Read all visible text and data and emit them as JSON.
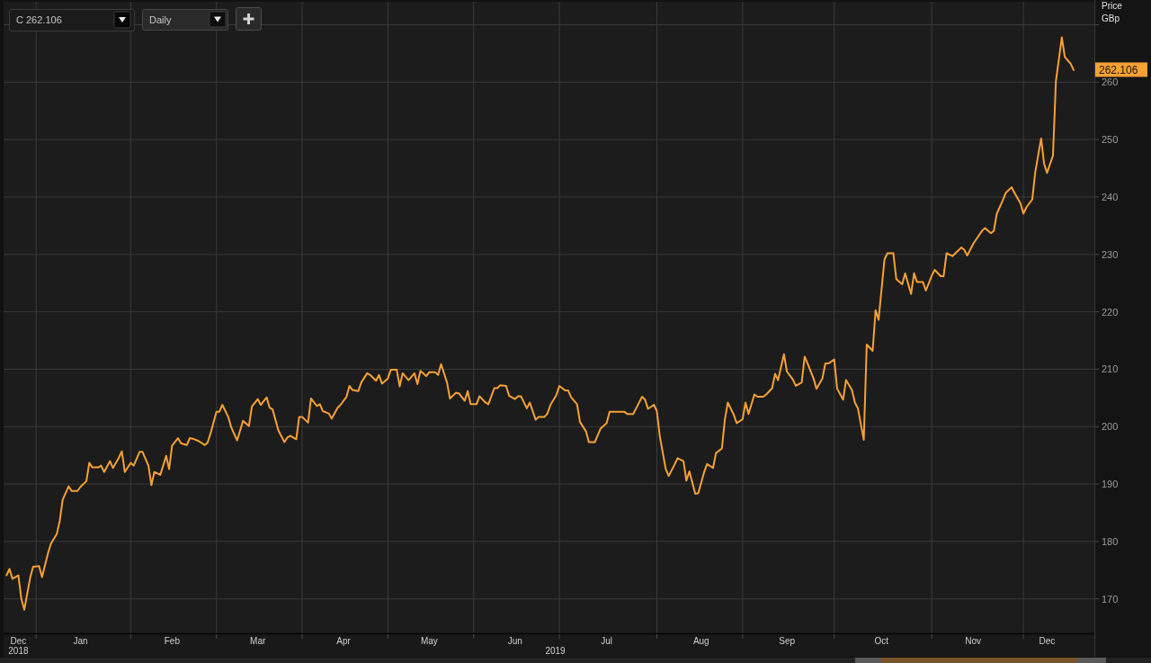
{
  "chart_data": {
    "type": "line",
    "ylabel": "Price GBp",
    "xlabel": "2019",
    "annotations": [
      "C 262.106",
      "Daily",
      "262.106"
    ],
    "grid": true,
    "xlim": [
      "2018-12-21",
      "2019-12-25"
    ],
    "xticks": [
      {
        "value": "2018-12-26",
        "label": "Dec\n2018"
      },
      {
        "value": "2019-01-01",
        "label": null
      },
      {
        "value": "2019-01-16",
        "label": "Jan"
      },
      {
        "value": "2019-02-02",
        "label": null
      },
      {
        "value": "2019-02-16",
        "label": "Feb"
      },
      {
        "value": "2019-03-03",
        "label": null
      },
      {
        "value": "2019-03-17",
        "label": "Mar"
      },
      {
        "value": "2019-04-01",
        "label": null
      },
      {
        "value": "2019-04-15",
        "label": "Apr"
      },
      {
        "value": "2019-04-30",
        "label": null
      },
      {
        "value": "2019-05-14",
        "label": "May"
      },
      {
        "value": "2019-05-29",
        "label": null
      },
      {
        "value": "2019-06-12",
        "label": "Jun"
      },
      {
        "value": "2019-06-27",
        "label": null
      },
      {
        "value": "2019-07-13",
        "label": "Jul"
      },
      {
        "value": "2019-07-30",
        "label": null
      },
      {
        "value": "2019-08-14",
        "label": "Aug"
      },
      {
        "value": "2019-08-28",
        "label": null
      },
      {
        "value": "2019-09-12",
        "label": "Sep"
      },
      {
        "value": "2019-09-28",
        "label": null
      },
      {
        "value": "2019-10-14",
        "label": "Oct"
      },
      {
        "value": "2019-10-31",
        "label": null
      },
      {
        "value": "2019-11-14",
        "label": "Nov"
      },
      {
        "value": "2019-12-01",
        "label": null
      },
      {
        "value": "2019-12-09",
        "label": "Dec"
      }
    ],
    "ylim": [
      164,
      274
    ],
    "yticks": [
      170,
      180,
      190,
      200,
      210,
      220,
      230,
      240,
      250,
      260,
      {
        "value": 270,
        "label": null
      }
    ],
    "x": [
      "2018-12-22",
      "2018-12-23",
      "2018-12-24",
      "2018-12-26",
      "2018-12-27",
      "2018-12-28",
      "2018-12-30",
      "2018-12-31",
      "2019-01-02",
      "2019-01-03",
      "2019-01-05",
      "2019-01-06",
      "2019-01-08",
      "2019-01-09",
      "2019-01-10",
      "2019-01-12",
      "2019-01-13",
      "2019-01-15",
      "2019-01-16",
      "2019-01-18",
      "2019-01-19",
      "2019-01-20",
      "2019-01-22",
      "2019-01-23",
      "2019-01-24",
      "2019-01-26",
      "2019-01-27",
      "2019-01-29",
      "2019-01-30",
      "2019-01-31",
      "2019-02-02",
      "2019-02-03",
      "2019-02-05",
      "2019-02-06",
      "2019-02-08",
      "2019-02-09",
      "2019-02-10",
      "2019-02-12",
      "2019-02-14",
      "2019-02-15",
      "2019-02-16",
      "2019-02-18",
      "2019-02-19",
      "2019-02-21",
      "2019-02-22",
      "2019-02-23",
      "2019-02-25",
      "2019-02-27",
      "2019-02-28",
      "2019-03-01",
      "2019-03-03",
      "2019-03-04",
      "2019-03-05",
      "2019-03-07",
      "2019-03-08",
      "2019-03-10",
      "2019-03-11",
      "2019-03-12",
      "2019-03-14",
      "2019-03-15",
      "2019-03-17",
      "2019-03-18",
      "2019-03-20",
      "2019-03-21",
      "2019-03-22",
      "2019-03-24",
      "2019-03-26",
      "2019-03-27",
      "2019-03-28",
      "2019-03-30",
      "2019-03-31",
      "2019-04-01",
      "2019-04-03",
      "2019-04-04",
      "2019-04-06",
      "2019-04-07",
      "2019-04-08",
      "2019-04-10",
      "2019-04-11",
      "2019-04-13",
      "2019-04-14",
      "2019-04-16",
      "2019-04-17",
      "2019-04-18",
      "2019-04-20",
      "2019-04-21",
      "2019-04-23",
      "2019-04-24",
      "2019-04-26",
      "2019-04-27",
      "2019-04-28",
      "2019-04-30",
      "2019-05-01",
      "2019-05-03",
      "2019-05-04",
      "2019-05-05",
      "2019-05-07",
      "2019-05-09",
      "2019-05-10",
      "2019-05-11",
      "2019-05-13",
      "2019-05-14",
      "2019-05-16",
      "2019-05-17",
      "2019-05-18",
      "2019-05-20",
      "2019-05-21",
      "2019-05-23",
      "2019-05-24",
      "2019-05-26",
      "2019-05-27",
      "2019-05-28",
      "2019-05-30",
      "2019-05-31",
      "2019-06-02",
      "2019-06-03",
      "2019-06-05",
      "2019-06-06",
      "2019-06-07",
      "2019-06-09",
      "2019-06-10",
      "2019-06-12",
      "2019-06-13",
      "2019-06-14",
      "2019-06-16",
      "2019-06-17",
      "2019-06-19",
      "2019-06-20",
      "2019-06-22",
      "2019-06-23",
      "2019-06-24",
      "2019-06-26",
      "2019-06-27",
      "2019-06-29",
      "2019-06-30",
      "2019-07-01",
      "2019-07-03",
      "2019-07-04",
      "2019-07-06",
      "2019-07-07",
      "2019-07-09",
      "2019-07-10",
      "2019-07-11",
      "2019-07-13",
      "2019-07-14",
      "2019-07-16",
      "2019-07-17",
      "2019-07-19",
      "2019-07-20",
      "2019-07-22",
      "2019-07-23",
      "2019-07-25",
      "2019-07-26",
      "2019-07-27",
      "2019-07-29",
      "2019-07-30",
      "2019-07-31",
      "2019-08-02",
      "2019-08-03",
      "2019-08-05",
      "2019-08-06",
      "2019-08-08",
      "2019-08-09",
      "2019-08-10",
      "2019-08-12",
      "2019-08-13",
      "2019-08-15",
      "2019-08-16",
      "2019-08-18",
      "2019-08-19",
      "2019-08-21",
      "2019-08-22",
      "2019-08-23",
      "2019-08-25",
      "2019-08-26",
      "2019-08-28",
      "2019-08-29",
      "2019-08-30",
      "2019-09-01",
      "2019-09-02",
      "2019-09-04",
      "2019-09-05",
      "2019-09-07",
      "2019-09-08",
      "2019-09-09",
      "2019-09-11",
      "2019-09-12",
      "2019-09-14",
      "2019-09-15",
      "2019-09-17",
      "2019-09-18",
      "2019-09-19",
      "2019-09-21",
      "2019-09-22",
      "2019-09-24",
      "2019-09-25",
      "2019-09-26",
      "2019-09-28",
      "2019-09-29",
      "2019-10-01",
      "2019-10-02",
      "2019-10-04",
      "2019-10-05",
      "2019-10-06",
      "2019-10-08",
      "2019-10-09",
      "2019-10-11",
      "2019-10-12",
      "2019-10-13",
      "2019-10-15",
      "2019-10-16",
      "2019-10-18",
      "2019-10-19",
      "2019-10-21",
      "2019-10-22",
      "2019-10-24",
      "2019-10-25",
      "2019-10-26",
      "2019-10-28",
      "2019-10-29",
      "2019-10-31",
      "2019-11-01",
      "2019-11-03",
      "2019-11-04",
      "2019-11-05",
      "2019-11-07",
      "2019-11-08",
      "2019-11-10",
      "2019-11-11",
      "2019-11-12",
      "2019-11-14",
      "2019-11-15",
      "2019-11-17",
      "2019-11-18",
      "2019-11-20",
      "2019-11-21",
      "2019-11-22",
      "2019-11-24",
      "2019-11-25",
      "2019-11-27",
      "2019-11-28",
      "2019-11-30",
      "2019-12-01",
      "2019-12-02",
      "2019-12-04",
      "2019-12-05",
      "2019-12-07",
      "2019-12-08",
      "2019-12-09",
      "2019-12-11",
      "2019-12-12",
      "2019-12-14",
      "2019-12-15",
      "2019-12-17",
      "2019-12-18"
    ],
    "series": [
      {
        "color": "#f7a135",
        "values": [
          174.1,
          175.2,
          173.5,
          174.1,
          170.0,
          168.1,
          173.7,
          175.6,
          175.7,
          173.8,
          177.9,
          179.6,
          181.3,
          183.6,
          187.3,
          189.6,
          188.8,
          188.8,
          189.5,
          190.5,
          193.7,
          192.9,
          192.9,
          193.2,
          192.1,
          194.0,
          192.8,
          194.6,
          195.7,
          192.1,
          193.7,
          193.2,
          195.6,
          195.6,
          193.2,
          189.8,
          192.1,
          191.6,
          194.9,
          192.6,
          196.7,
          198.0,
          197.1,
          196.8,
          198.0,
          197.9,
          197.5,
          196.8,
          197.2,
          198.8,
          202.6,
          202.6,
          203.8,
          201.7,
          199.9,
          197.6,
          199.3,
          201.0,
          200.1,
          203.5,
          204.8,
          203.8,
          205.1,
          203.3,
          203.0,
          199.3,
          197.3,
          198.1,
          198.4,
          197.8,
          201.7,
          201.7,
          200.7,
          204.9,
          203.6,
          203.9,
          202.7,
          202.3,
          201.4,
          203.3,
          203.8,
          205.2,
          207.1,
          206.4,
          206.2,
          207.7,
          209.3,
          209.0,
          208.0,
          209.0,
          207.5,
          208.4,
          209.9,
          209.9,
          207.0,
          209.3,
          208.1,
          209.3,
          207.4,
          209.7,
          208.8,
          209.5,
          209.5,
          209.0,
          210.9,
          207.7,
          204.9,
          205.9,
          205.8,
          204.5,
          206.2,
          203.9,
          203.9,
          205.3,
          204.2,
          203.9,
          206.7,
          206.7,
          207.2,
          207.1,
          205.4,
          204.8,
          205.3,
          205.3,
          203.2,
          204.2,
          201.2,
          201.7,
          201.7,
          202.3,
          203.8,
          205.5,
          207.1,
          206.3,
          206.3,
          205.1,
          203.9,
          200.8,
          199.2,
          197.3,
          197.3,
          198.5,
          199.7,
          200.6,
          202.6,
          202.6,
          202.6,
          202.6,
          202.2,
          202.2,
          203.2,
          205.2,
          204.7,
          203.1,
          203.8,
          202.7,
          198.3,
          192.6,
          191.4,
          193.4,
          194.5,
          194.0,
          190.6,
          192.2,
          188.3,
          188.4,
          192.1,
          193.5,
          192.8,
          195.4,
          196.2,
          201.2,
          204.2,
          202.1,
          200.6,
          201.3,
          204.2,
          202.2,
          205.6,
          205.2,
          205.2,
          205.6,
          206.7,
          209.2,
          208.1,
          212.6,
          209.6,
          208.2,
          207.1,
          207.7,
          212.2,
          211.0,
          208.4,
          206.6,
          208.4,
          211.0,
          211.0,
          211.7,
          206.6,
          204.7,
          208.1,
          206.4,
          204.2,
          203.2,
          197.7,
          214.3,
          213.2,
          220.3,
          218.6,
          229.1,
          230.2,
          230.2,
          225.7,
          224.8,
          226.7,
          223.1,
          226.7,
          225.2,
          225.2,
          223.7,
          226.3,
          227.3,
          226.2,
          226.2,
          230.2,
          229.7,
          230.2,
          231.2,
          230.8,
          229.8,
          231.8,
          232.6,
          234.1,
          234.6,
          233.7,
          234.1,
          237.1,
          239.4,
          240.7,
          241.7,
          240.7,
          238.9,
          237.1,
          238.2,
          239.6,
          244.3,
          250.2,
          245.8,
          244.2,
          247.2,
          260.2,
          267.8,
          264.4,
          263.2,
          262.1
        ]
      }
    ]
  }
}
